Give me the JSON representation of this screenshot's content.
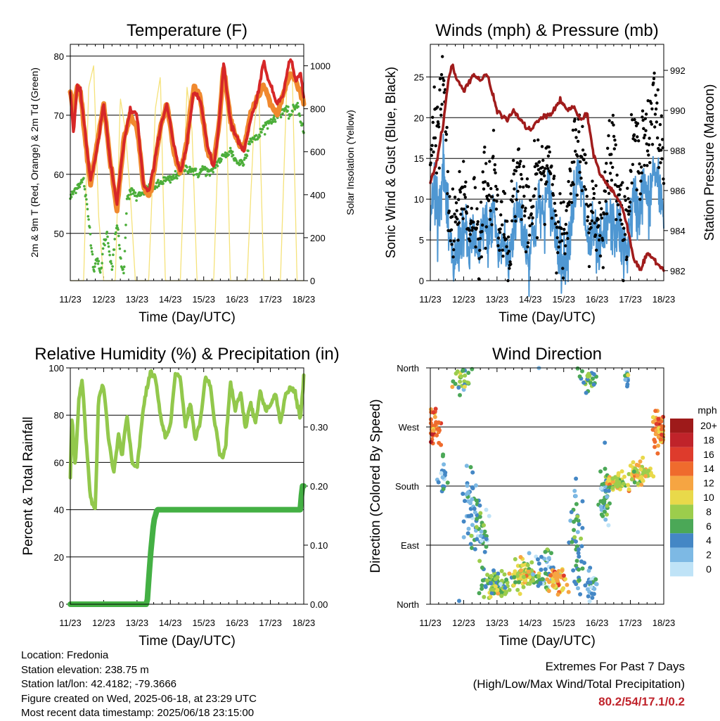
{
  "footer": {
    "location": "Location: Fredonia",
    "elevation": "Station elevation: 238.75 m",
    "latlon": "Station lat/lon: 42.4182; -79.3666",
    "created": "Figure created on Wed, 2025-06-18, at 23:29 UTC",
    "recent": "Most recent data timestamp: 2025/06/18 23:15:00",
    "extremes_title": "Extremes For Past 7 Days",
    "extremes_sub": "(High/Low/Max Wind/Total Precipitation)",
    "extremes_values": "80.2/54/17.1/0.2"
  },
  "chart_data": [
    {
      "type": "line",
      "title": "Temperature (F)",
      "xlabel": "Time (Day/UTC)",
      "ylabel": "2m & 9m T (Red, Orange) & 2m Td (Green)",
      "y2label": "Solar Insolation (Yellow)",
      "x_ticks": [
        "11/23",
        "12/23",
        "13/23",
        "14/23",
        "15/23",
        "16/23",
        "17/23",
        "18/23"
      ],
      "xlim": [
        0,
        7
      ],
      "ylim": [
        42,
        82
      ],
      "y_ticks": [
        50,
        60,
        70,
        80
      ],
      "y2lim": [
        0,
        1100
      ],
      "y2_ticks": [
        0,
        200,
        400,
        600,
        800,
        1000
      ],
      "grid": "horizontal",
      "colors": {
        "t2m": "#d62728",
        "t9m": "#f0892e",
        "td": "#4cae3a",
        "solar": "#f5e27a"
      },
      "series": [
        {
          "key": "t9m",
          "x": [
            0,
            0.1,
            0.2,
            0.3,
            0.45,
            0.6,
            0.8,
            1.0,
            1.2,
            1.4,
            1.6,
            1.8,
            2.0,
            2.2,
            2.35,
            2.5,
            2.7,
            2.9,
            3.1,
            3.3,
            3.5,
            3.7,
            3.9,
            4.1,
            4.3,
            4.45,
            4.6,
            4.8,
            5.0,
            5.2,
            5.4,
            5.6,
            5.8,
            6.0,
            6.2,
            6.4,
            6.6,
            6.75,
            6.9,
            7.0
          ],
          "values": [
            74,
            70,
            75,
            74,
            66,
            58,
            65,
            72,
            62,
            54,
            66,
            70,
            68,
            58,
            56,
            60,
            68,
            72,
            64,
            60,
            66,
            75,
            73,
            64,
            62,
            68,
            78,
            69,
            66,
            64,
            70,
            73,
            75,
            72,
            70,
            74,
            77,
            76,
            74,
            72
          ]
        },
        {
          "key": "t2m",
          "x": [
            0,
            0.1,
            0.2,
            0.3,
            0.45,
            0.6,
            0.8,
            1.0,
            1.2,
            1.4,
            1.6,
            1.8,
            2.0,
            2.2,
            2.35,
            2.5,
            2.7,
            2.9,
            3.1,
            3.3,
            3.5,
            3.7,
            3.9,
            4.1,
            4.3,
            4.45,
            4.6,
            4.8,
            5.0,
            5.2,
            5.4,
            5.6,
            5.8,
            6.0,
            6.2,
            6.4,
            6.6,
            6.75,
            6.9,
            7.0
          ],
          "values": [
            74,
            67,
            75,
            74,
            67,
            59,
            64,
            72,
            62,
            55,
            65,
            71,
            70,
            58,
            57,
            61,
            68,
            72,
            65,
            60,
            65,
            74,
            73,
            65,
            61,
            68,
            79,
            69,
            66,
            64,
            69,
            73,
            79,
            75,
            72,
            74,
            80,
            76,
            77,
            73
          ]
        },
        {
          "key": "td",
          "x": [
            0,
            0.2,
            0.4,
            0.6,
            0.7,
            0.8,
            0.9,
            1.0,
            1.1,
            1.25,
            1.4,
            1.5,
            1.6,
            1.7,
            1.8,
            1.9,
            2.0,
            2.2,
            2.4,
            2.6,
            2.8,
            3.0,
            3.2,
            3.4,
            3.6,
            3.8,
            4.0,
            4.2,
            4.4,
            4.6,
            4.8,
            5.0,
            5.2,
            5.4,
            5.6,
            5.8,
            6.0,
            6.2,
            6.4,
            6.6,
            6.8,
            7.0
          ],
          "values": [
            56,
            58,
            59,
            50,
            44,
            46,
            43,
            48,
            50,
            44,
            52,
            46,
            43,
            56,
            57,
            57,
            56,
            57,
            58,
            58,
            59,
            59,
            60,
            61,
            61,
            60,
            61,
            60,
            62,
            63,
            64,
            62,
            62,
            66,
            66,
            68,
            69,
            70,
            71,
            70,
            72,
            67
          ]
        },
        {
          "key": "solar",
          "x": [
            0,
            0.4,
            0.55,
            0.7,
            0.85,
            1.0,
            1.35,
            1.5,
            1.65,
            1.8,
            1.95,
            2.35,
            2.55,
            2.7,
            2.85,
            3.3,
            3.5,
            3.65,
            3.8,
            4.3,
            4.5,
            4.65,
            4.8,
            5.3,
            5.5,
            5.65,
            5.8,
            6.3,
            6.5,
            6.65,
            6.8,
            7.0
          ],
          "values": [
            0,
            0,
            900,
            1000,
            300,
            0,
            0,
            850,
            700,
            400,
            0,
            0,
            800,
            950,
            0,
            0,
            900,
            700,
            0,
            0,
            950,
            1000,
            0,
            0,
            700,
            900,
            0,
            0,
            950,
            1000,
            0,
            0
          ]
        }
      ]
    },
    {
      "type": "line",
      "title": "Winds (mph) & Pressure (mb)",
      "xlabel": "Time (Day/UTC)",
      "ylabel": "Sonic Wind & Gust (Blue, Black)",
      "y2label": "Station Pressure (Maroon)",
      "x_ticks": [
        "11/23",
        "12/23",
        "13/23",
        "14/23",
        "15/23",
        "16/23",
        "17/23",
        "18/23"
      ],
      "xlim": [
        0,
        7
      ],
      "ylim": [
        0,
        29
      ],
      "y_ticks": [
        0,
        5,
        10,
        15,
        20,
        25
      ],
      "y2lim": [
        981.5,
        993.3
      ],
      "y2_ticks": [
        982,
        984,
        986,
        988,
        990,
        992
      ],
      "grid": "horizontal",
      "colors": {
        "wind": "#4f97d2",
        "gust": "#000000",
        "pressure": "#a01c1c"
      },
      "series": [
        {
          "key": "pressure",
          "x": [
            0,
            0.2,
            0.4,
            0.55,
            0.65,
            0.8,
            1.0,
            1.3,
            1.5,
            1.7,
            2.0,
            2.3,
            2.5,
            2.8,
            3.0,
            3.3,
            3.6,
            3.9,
            4.1,
            4.3,
            4.5,
            4.7,
            4.9,
            5.1,
            5.3,
            5.5,
            5.7,
            5.9,
            6.1,
            6.3,
            6.5,
            6.7,
            6.9,
            7.0
          ],
          "values": [
            986.4,
            987.5,
            989.5,
            991.6,
            992.3,
            991.5,
            991.0,
            991.8,
            991.5,
            991.8,
            990.0,
            989.5,
            990.0,
            989.3,
            989.0,
            989.6,
            989.8,
            990.5,
            990.0,
            990.2,
            989.5,
            989.8,
            987.8,
            986.8,
            986.3,
            985.9,
            985.4,
            984.3,
            982.6,
            982.0,
            982.8,
            982.6,
            982.2,
            982.0
          ]
        },
        {
          "key": "wind",
          "x": [
            0,
            0.1,
            0.25,
            0.4,
            0.55,
            0.7,
            0.85,
            1.0,
            1.15,
            1.3,
            1.45,
            1.6,
            1.75,
            1.9,
            2.05,
            2.2,
            2.35,
            2.5,
            2.65,
            2.8,
            2.95,
            3.1,
            3.25,
            3.4,
            3.55,
            3.7,
            3.85,
            4.0,
            4.15,
            4.3,
            4.45,
            4.6,
            4.75,
            4.9,
            5.05,
            5.2,
            5.35,
            5.5,
            5.65,
            5.8,
            5.95,
            6.1,
            6.25,
            6.4,
            6.55,
            6.7,
            6.85,
            7.0
          ],
          "values": [
            7,
            12,
            9,
            14,
            5,
            2,
            4,
            7,
            3,
            6,
            2,
            8,
            5,
            9,
            3,
            5,
            2,
            7,
            9,
            6,
            3,
            6,
            9,
            8,
            11,
            7,
            4,
            2,
            5,
            10,
            13,
            9,
            4,
            6,
            3,
            5,
            8,
            6,
            7,
            3,
            5,
            10,
            8,
            12,
            9,
            14,
            11,
            9
          ]
        },
        {
          "key": "gust",
          "x": [
            0,
            0.1,
            0.25,
            0.4,
            0.55,
            0.7,
            0.85,
            1.0,
            1.15,
            1.3,
            1.45,
            1.6,
            1.75,
            1.9,
            2.05,
            2.2,
            2.35,
            2.5,
            2.65,
            2.8,
            2.95,
            3.1,
            3.25,
            3.4,
            3.55,
            3.7,
            3.85,
            4.0,
            4.15,
            4.3,
            4.45,
            4.6,
            4.75,
            4.9,
            5.05,
            5.2,
            5.35,
            5.5,
            5.65,
            5.8,
            5.95,
            6.1,
            6.25,
            6.4,
            6.55,
            6.7,
            6.85,
            7.0
          ],
          "values": [
            14,
            20,
            18,
            26,
            8,
            5,
            9,
            12,
            6,
            10,
            4,
            12,
            8,
            15,
            6,
            8,
            4,
            11,
            14,
            10,
            6,
            10,
            14,
            12,
            16,
            11,
            7,
            4,
            8,
            15,
            18,
            14,
            7,
            10,
            6,
            9,
            14,
            17,
            12,
            6,
            9,
            18,
            14,
            20,
            16,
            22,
            18,
            15
          ]
        }
      ]
    },
    {
      "type": "line",
      "title": "Relative Humidity (%) & Precipitation (in)",
      "xlabel": "Time (Day/UTC)",
      "ylabel": "Percent & Total Rainfall",
      "x_ticks": [
        "11/23",
        "12/23",
        "13/23",
        "14/23",
        "15/23",
        "16/23",
        "17/23",
        "18/23"
      ],
      "xlim": [
        0,
        7
      ],
      "ylim": [
        0,
        100
      ],
      "y_ticks": [
        0,
        20,
        40,
        60,
        80,
        100
      ],
      "y2lim": [
        0,
        0.4
      ],
      "y2_ticks": [
        "0.00",
        "0.10",
        "0.20",
        "0.30"
      ],
      "grid": "horizontal",
      "colors": {
        "rh": "#92c84c",
        "precip": "#44b044"
      },
      "series": [
        {
          "key": "rh",
          "x": [
            0,
            0.05,
            0.15,
            0.25,
            0.35,
            0.45,
            0.6,
            0.75,
            0.85,
            1.0,
            1.15,
            1.3,
            1.45,
            1.55,
            1.7,
            1.85,
            2.0,
            2.2,
            2.4,
            2.55,
            2.7,
            2.85,
            3.0,
            3.15,
            3.3,
            3.45,
            3.6,
            3.75,
            3.9,
            4.05,
            4.2,
            4.35,
            4.5,
            4.65,
            4.8,
            4.95,
            5.1,
            5.25,
            5.4,
            5.55,
            5.7,
            5.85,
            6.0,
            6.15,
            6.3,
            6.45,
            6.6,
            6.75,
            6.9,
            7.0
          ],
          "values": [
            55,
            80,
            58,
            86,
            95,
            75,
            45,
            40,
            88,
            92,
            70,
            55,
            72,
            62,
            80,
            60,
            58,
            84,
            98,
            96,
            80,
            70,
            75,
            98,
            96,
            75,
            85,
            70,
            78,
            96,
            92,
            75,
            62,
            65,
            94,
            82,
            90,
            74,
            86,
            76,
            90,
            82,
            84,
            90,
            77,
            88,
            92,
            90,
            78,
            96
          ]
        },
        {
          "key": "precip",
          "x": [
            0,
            1.0,
            2.0,
            2.3,
            2.4,
            2.5,
            2.6,
            3.0,
            4.0,
            5.0,
            6.0,
            6.9,
            6.95,
            7.0
          ],
          "values": [
            0.0,
            0.0,
            0.0,
            0.0,
            0.08,
            0.14,
            0.16,
            0.16,
            0.16,
            0.16,
            0.16,
            0.16,
            0.2,
            0.2
          ]
        }
      ]
    },
    {
      "type": "scatter",
      "title": "Wind Direction",
      "xlabel": "Time (Day/UTC)",
      "ylabel": "Direction (Colored By Speed)",
      "x_ticks": [
        "11/23",
        "12/23",
        "13/23",
        "14/23",
        "15/23",
        "16/23",
        "17/23",
        "18/23"
      ],
      "xlim": [
        0,
        7
      ],
      "y_ticks": [
        "North",
        "East",
        "South",
        "West",
        "North"
      ],
      "ylim": [
        0,
        360
      ],
      "grid": "horizontal",
      "legend_title": "mph",
      "legend_labels": [
        "20+",
        "18",
        "16",
        "14",
        "12",
        "10",
        "8",
        "6",
        "4",
        "2",
        "0"
      ],
      "legend_colors": [
        "#9e1a1a",
        "#c0232a",
        "#de3b2c",
        "#ef6b2d",
        "#f6a542",
        "#e9d94a",
        "#9ccd4c",
        "#4ba857",
        "#4487c5",
        "#7db9e4",
        "#bfe3f7"
      ],
      "legend_placement": "right",
      "clusters": [
        {
          "x": 0.15,
          "dir": 270,
          "spread_x": 0.15,
          "spread_y": 25,
          "speed": 14,
          "n": 40
        },
        {
          "x": 0.35,
          "dir": 190,
          "spread_x": 0.1,
          "spread_y": 30,
          "speed": 3,
          "n": 20
        },
        {
          "x": 0.95,
          "dir": 340,
          "spread_x": 0.25,
          "spread_y": 15,
          "speed": 6,
          "n": 30
        },
        {
          "x": 1.2,
          "dir": 160,
          "spread_x": 0.2,
          "spread_y": 40,
          "speed": 3,
          "n": 40
        },
        {
          "x": 1.5,
          "dir": 110,
          "spread_x": 0.3,
          "spread_y": 30,
          "speed": 4,
          "n": 40
        },
        {
          "x": 2.0,
          "dir": 30,
          "spread_x": 0.35,
          "spread_y": 20,
          "speed": 7,
          "n": 90
        },
        {
          "x": 2.8,
          "dir": 45,
          "spread_x": 0.3,
          "spread_y": 18,
          "speed": 9,
          "n": 90
        },
        {
          "x": 3.4,
          "dir": 50,
          "spread_x": 0.3,
          "spread_y": 30,
          "speed": 4,
          "n": 50
        },
        {
          "x": 3.8,
          "dir": 35,
          "spread_x": 0.2,
          "spread_y": 15,
          "speed": 12,
          "n": 50
        },
        {
          "x": 4.4,
          "dir": 90,
          "spread_x": 0.2,
          "spread_y": 60,
          "speed": 4,
          "n": 50
        },
        {
          "x": 4.75,
          "dir": 340,
          "spread_x": 0.15,
          "spread_y": 15,
          "speed": 6,
          "n": 30
        },
        {
          "x": 4.85,
          "dir": 30,
          "spread_x": 0.15,
          "spread_y": 20,
          "speed": 3,
          "n": 25
        },
        {
          "x": 5.2,
          "dir": 160,
          "spread_x": 0.15,
          "spread_y": 40,
          "speed": 4,
          "n": 40
        },
        {
          "x": 5.6,
          "dir": 185,
          "spread_x": 0.25,
          "spread_y": 10,
          "speed": 9,
          "n": 60
        },
        {
          "x": 5.9,
          "dir": 345,
          "spread_x": 0.05,
          "spread_y": 10,
          "speed": 5,
          "n": 12
        },
        {
          "x": 6.3,
          "dir": 200,
          "spread_x": 0.3,
          "spread_y": 15,
          "speed": 10,
          "n": 60
        },
        {
          "x": 6.85,
          "dir": 265,
          "spread_x": 0.15,
          "spread_y": 20,
          "speed": 13,
          "n": 60
        }
      ]
    }
  ]
}
